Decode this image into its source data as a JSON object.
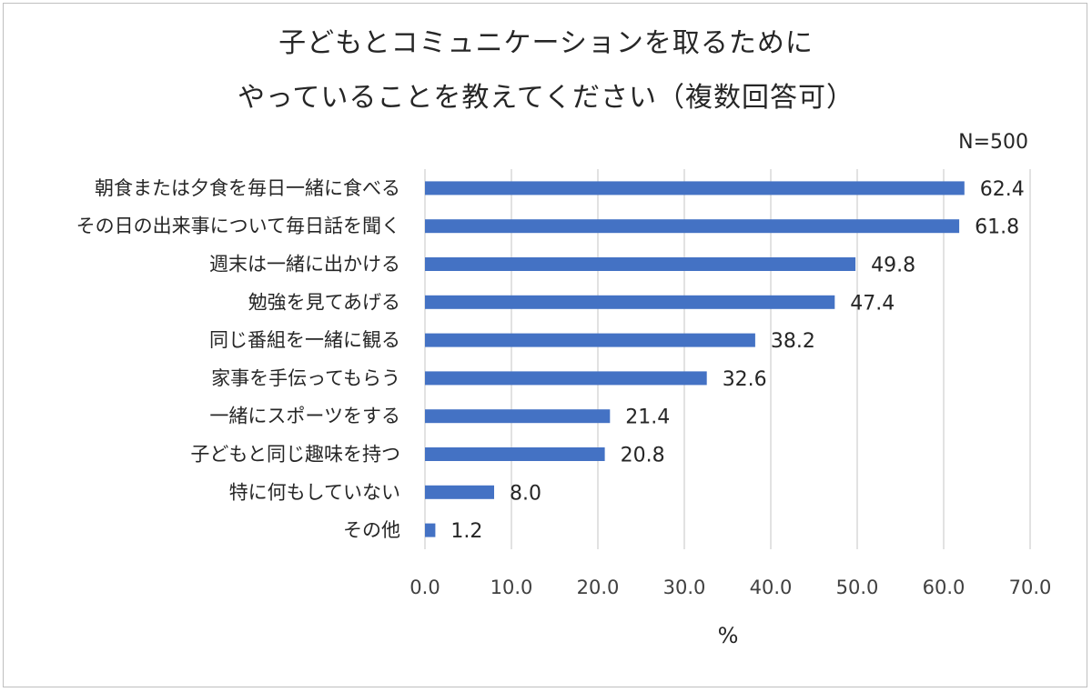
{
  "header": {
    "title_line1": "子どもとコミュニケーションを取るために",
    "title_line2": "やっていることを教えてください（複数回答可）",
    "sample_note": "N=500"
  },
  "chart_data": {
    "type": "bar",
    "orientation": "horizontal",
    "title": "子どもとコミュニケーションを取るために やっていることを教えてください（複数回答可）",
    "categories": [
      "朝食または夕食を毎日一緒に食べる",
      "その日の出来事について毎日話を聞く",
      "週末は一緒に出かける",
      "勉強を見てあげる",
      "同じ番組を一緒に観る",
      "家事を手伝ってもらう",
      "一緒にスポーツをする",
      "子どもと同じ趣味を持つ",
      "特に何もしていない",
      "その他"
    ],
    "values": [
      62.4,
      61.8,
      49.8,
      47.4,
      38.2,
      32.6,
      21.4,
      20.8,
      8.0,
      1.2
    ],
    "value_labels": [
      "62.4",
      "61.8",
      "49.8",
      "47.4",
      "38.2",
      "32.6",
      "21.4",
      "20.8",
      "8.0",
      "1.2"
    ],
    "xlim": [
      0,
      70
    ],
    "x_ticks": [
      "0.0",
      "10.0",
      "20.0",
      "30.0",
      "40.0",
      "50.0",
      "60.0",
      "70.0"
    ],
    "xlabel": "%",
    "ylabel": "",
    "grid": "vertical",
    "legend": "none",
    "bar_color": "#4472c4",
    "grid_color": "#d9d9d9"
  }
}
